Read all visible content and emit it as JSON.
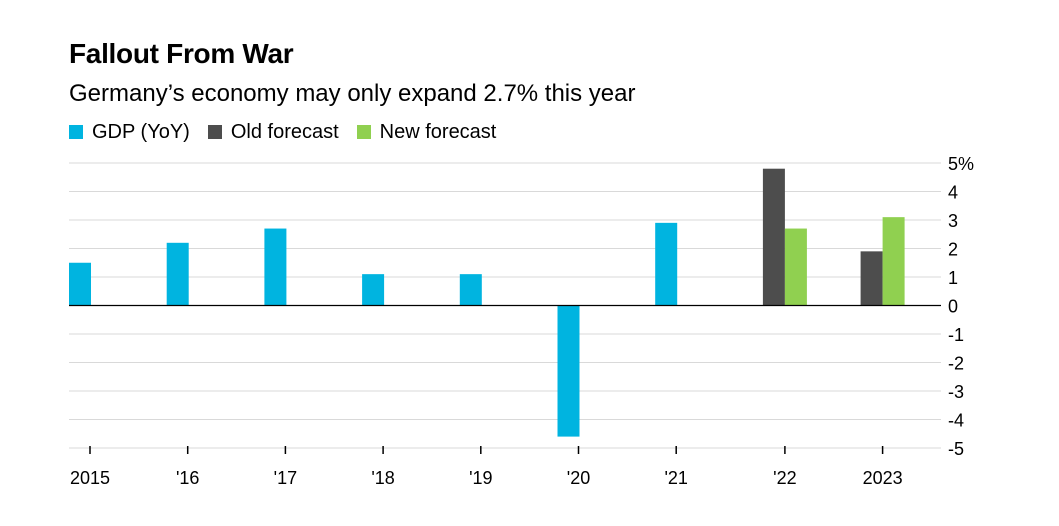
{
  "title": "Fallout From War",
  "subtitle": "Germany’s economy may only expand 2.7% this year",
  "colors": {
    "gdp": "#00b4e0",
    "old_forecast": "#4d4d4d",
    "new_forecast": "#90d050"
  },
  "legend": [
    {
      "label": "GDP (YoY)",
      "color": "#00b4e0"
    },
    {
      "label": "Old forecast",
      "color": "#4d4d4d"
    },
    {
      "label": "New forecast",
      "color": "#90d050"
    }
  ],
  "chart_data": {
    "type": "bar",
    "title": "Fallout From War",
    "subtitle": "Germany’s economy may only expand 2.7% this year",
    "categories": [
      "2015",
      "'16",
      "'17",
      "'18",
      "'19",
      "'20",
      "'21",
      "'22",
      "2023"
    ],
    "series": [
      {
        "name": "GDP (YoY)",
        "values": [
          1.5,
          2.2,
          2.7,
          1.1,
          1.1,
          -4.6,
          2.9,
          null,
          null
        ]
      },
      {
        "name": "Old forecast",
        "values": [
          null,
          null,
          null,
          null,
          null,
          null,
          null,
          4.8,
          1.9
        ]
      },
      {
        "name": "New forecast",
        "values": [
          null,
          null,
          null,
          null,
          null,
          null,
          null,
          2.7,
          3.1
        ]
      }
    ],
    "y_ticks": [
      "5%",
      "4",
      "3",
      "2",
      "1",
      "0",
      "-1",
      "-2",
      "-3",
      "-4",
      "-5"
    ],
    "ylim": [
      -5,
      5
    ],
    "y_axis_position": "right",
    "legend_position": "top-left",
    "grid": true
  }
}
